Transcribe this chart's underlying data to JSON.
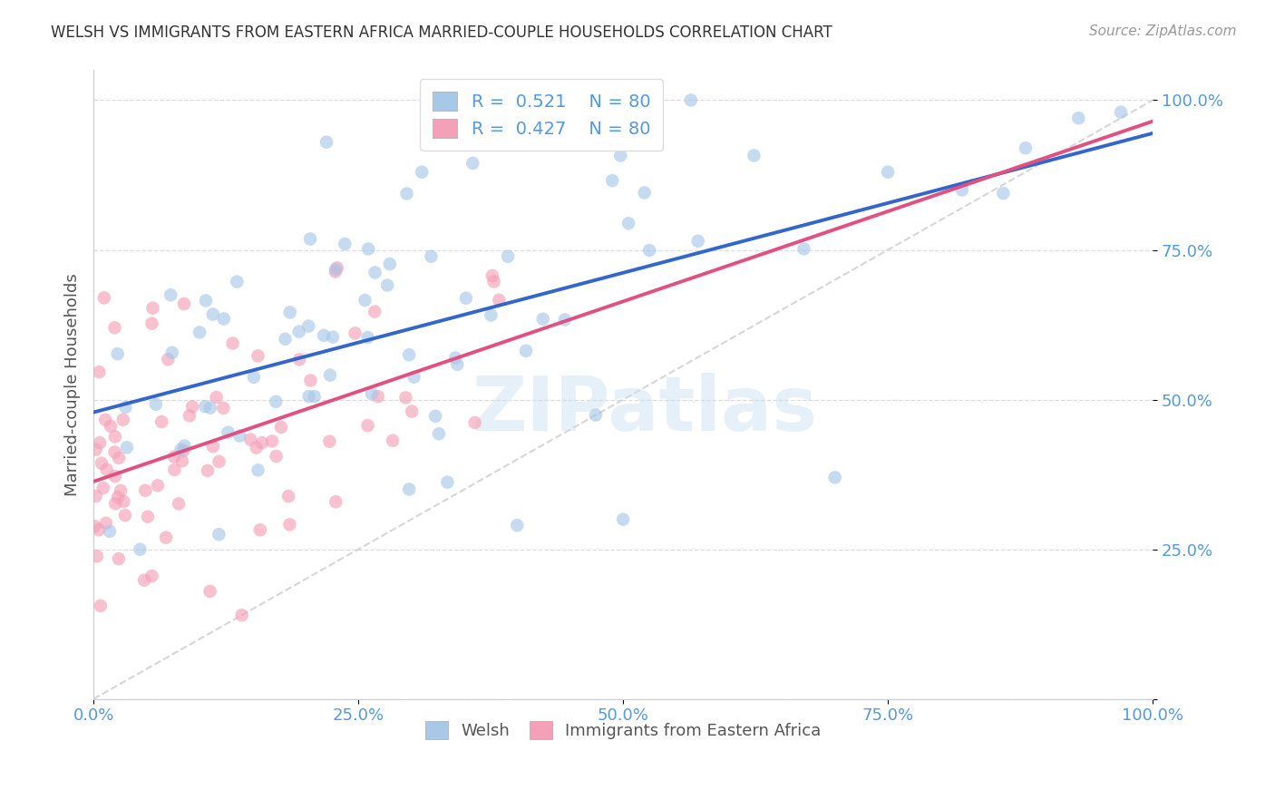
{
  "title": "WELSH VS IMMIGRANTS FROM EASTERN AFRICA MARRIED-COUPLE HOUSEHOLDS CORRELATION CHART",
  "source": "Source: ZipAtlas.com",
  "ylabel": "Married-couple Households",
  "watermark": "ZIPatlas",
  "legend_welsh": "Welsh",
  "legend_ea": "Immigrants from Eastern Africa",
  "R_welsh": 0.521,
  "N_welsh": 80,
  "R_ea": 0.427,
  "N_ea": 80,
  "welsh_color": "#a8c8e8",
  "ea_color": "#f4a0b8",
  "welsh_line_color": "#3366cc",
  "ea_line_color": "#e05080",
  "ref_line_color": "#cccccc",
  "background_color": "#ffffff",
  "grid_color": "#dddddd",
  "title_color": "#333333",
  "source_color": "#999999",
  "axis_label_color": "#555555",
  "tick_color": "#5599dd",
  "figsize": [
    14.06,
    8.92
  ],
  "dpi": 100
}
